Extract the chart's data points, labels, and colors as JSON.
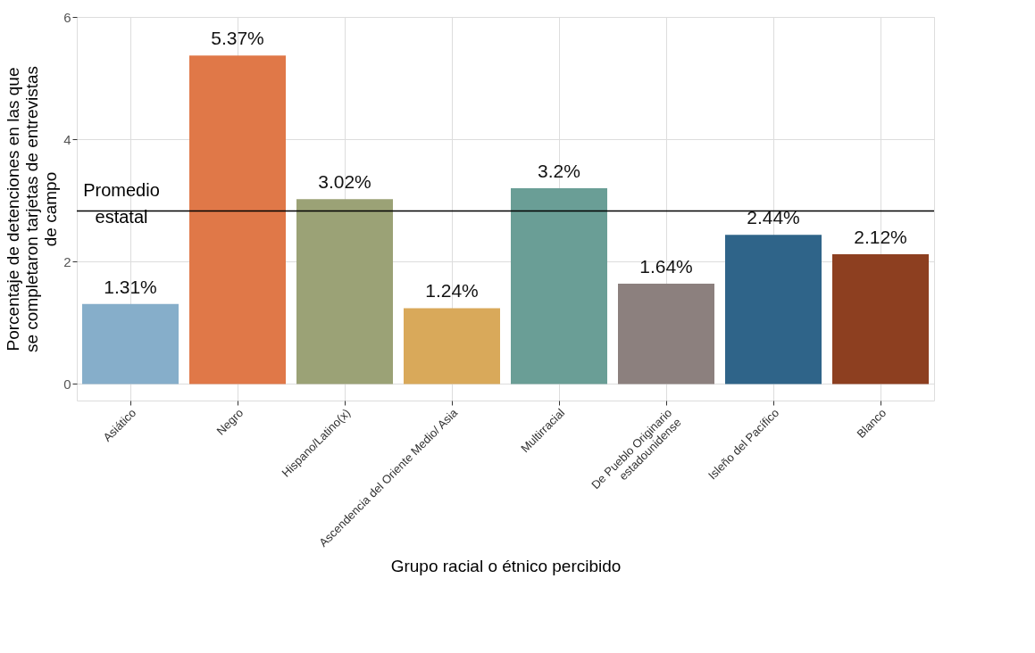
{
  "chart_data": {
    "type": "bar",
    "xlabel": "Grupo racial o étnico percibido",
    "ylabel": "Porcentaje de detenciones en las que\nse completaron tarjetas de entrevistas\nde campo",
    "categories": [
      "Asiático",
      "Negro",
      "Hispano/Latino(x)",
      "Ascendencia del Oriente Medio/ Asia",
      "Multirracial",
      "De Pueblo Originario\nestadounidense",
      "Isleño del Pacífico",
      "Blanco"
    ],
    "values": [
      1.31,
      5.37,
      3.02,
      1.24,
      3.2,
      1.64,
      2.44,
      2.12
    ],
    "colors": [
      "#86aeca",
      "#e07848",
      "#9ba276",
      "#d9a95a",
      "#6a9e96",
      "#8c807e",
      "#2f6489",
      "#8d3f20"
    ],
    "value_labels": [
      "1.31%",
      "5.37%",
      "3.02%",
      "1.24%",
      "3.2%",
      "1.64%",
      "2.44%",
      "2.12%"
    ],
    "ylim": [
      -0.27,
      6
    ],
    "yticks": [
      0,
      2,
      4,
      6
    ],
    "grid": true,
    "ref_lines": [
      {
        "axis": "y",
        "value": 2.83,
        "label": "Promedio\nestatal",
        "color": "#000000"
      }
    ]
  }
}
